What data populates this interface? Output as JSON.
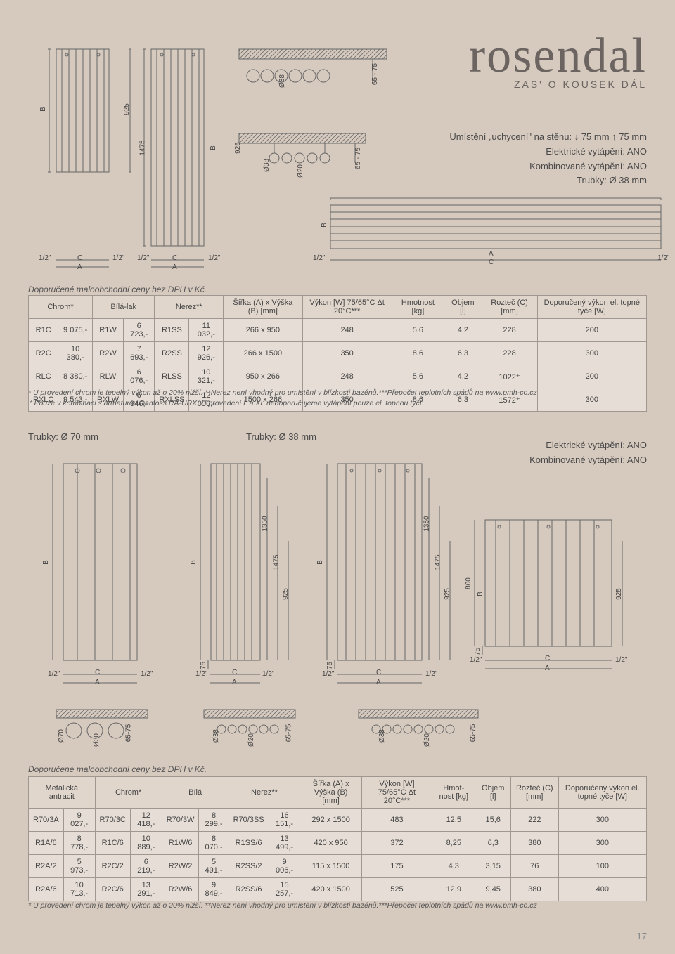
{
  "brand": "rosendal",
  "tagline": "ZAS' O KOUSEK DÁL",
  "specs": {
    "mounting": "Umístění „uchycení\" na stěnu: ↓ 75 mm ↑ 75 mm",
    "elec": "Elektrické vytápění: ANO",
    "comb": "Kombinované vytápění: ANO",
    "tubes": "Trubky: Ø 38 mm"
  },
  "dims": {
    "h_short": "925",
    "h_tall": "1475",
    "half": "1/2\"",
    "A": "A",
    "B": "B",
    "C": "C",
    "d38": "Ø38",
    "d20": "Ø20",
    "d30": "Ø30",
    "d70": "Ø70",
    "r65_75": "65 - 75",
    "r65_75b": "65-75",
    "m1350": "1350",
    "m1475": "1475",
    "m925": "925",
    "m800": "800",
    "m75": "75"
  },
  "priceNote": "Doporučené maloobchodní ceny bez DPH v Kč.",
  "table1": {
    "headers": {
      "chrom": "Chrom*",
      "bila": "Bílá-lak",
      "nerez": "Nerez**",
      "size": "Šířka (A) x Výška (B) [mm]",
      "vykon": "Výkon [W] 75/65°C Δt 20°C***",
      "hmot": "Hmotnost [kg]",
      "objem": "Objem [l]",
      "roztec": "Rozteč (C) [mm]",
      "dopor": "Doporučený výkon el. topné tyče [W]"
    },
    "rows": [
      [
        "R1C",
        "9 075,-",
        "R1W",
        "6 723,-",
        "R1SS",
        "11 032,-",
        "266 x 950",
        "248",
        "5,6",
        "4,2",
        "228",
        "200"
      ],
      [
        "R2C",
        "10 380,-",
        "R2W",
        "7 693,-",
        "R2SS",
        "12 926,-",
        "266 x 1500",
        "350",
        "8,6",
        "6,3",
        "228",
        "300"
      ],
      [
        "RLC",
        "8 380,-",
        "RLW",
        "6 076,-",
        "RLSS",
        "10 321,-",
        "950 x 266",
        "248",
        "5,6",
        "4,2",
        "1022⁺",
        "200"
      ],
      [
        "RXLC",
        "9 543,-",
        "RXLW",
        "6 946,-",
        "RXLSS",
        "12 056,-",
        "1500 x 266",
        "350",
        "8,6",
        "6,3",
        "1572⁺",
        "300"
      ]
    ]
  },
  "foot1a": "* U provedení chrom je tepelný výkon až o 20% nižší. **Nerez není vhodný pro umístění v blízkosti bazénů.***Přepočet teplotních spádů na www.pmh-co.cz",
  "foot1b": "⁺ Pouze v kombinaci s armaturou Danfoss RA-URX. U provedení L a XL nedoporučujeme vytápění pouze el. topnou tyčí.",
  "sec2": {
    "tubes70": "Trubky: Ø 70 mm",
    "tubes38": "Trubky: Ø 38 mm",
    "elec": "Elektrické vytápění: ANO",
    "comb": "Kombinované vytápění: ANO"
  },
  "table2": {
    "headers": {
      "metal": "Metalická antracit",
      "chrom": "Chrom*",
      "bila": "Bílá",
      "nerez": "Nerez**",
      "size": "Šířka (A) x Výška (B) [mm]",
      "vykon": "Výkon [W] 75/65°C Δt 20°C***",
      "hmot": "Hmot-nost [kg]",
      "objem": "Objem [l]",
      "roztec": "Rozteč (C) [mm]",
      "dopor": "Doporučený výkon el. topné tyče [W]"
    },
    "rows": [
      [
        "R70/3A",
        "9 027,-",
        "R70/3C",
        "12 418,-",
        "R70/3W",
        "8 299,-",
        "R70/3SS",
        "16 151,-",
        "292 x 1500",
        "483",
        "12,5",
        "15,6",
        "222",
        "300"
      ],
      [
        "R1A/6",
        "8 778,-",
        "R1C/6",
        "10 889,-",
        "R1W/6",
        "8 070,-",
        "R1SS/6",
        "13 499,-",
        "420 x 950",
        "372",
        "8,25",
        "6,3",
        "380",
        "300"
      ],
      [
        "R2A/2",
        "5 973,-",
        "R2C/2",
        "6 219,-",
        "R2W/2",
        "5 491,-",
        "R2SS/2",
        "9 006,-",
        "115 x 1500",
        "175",
        "4,3",
        "3,15",
        "76",
        "100"
      ],
      [
        "R2A/6",
        "10 713,-",
        "R2C/6",
        "13 291,-",
        "R2W/6",
        "9 849,-",
        "R2SS/6",
        "15 257,-",
        "420 x 1500",
        "525",
        "12,9",
        "9,45",
        "380",
        "400"
      ]
    ]
  },
  "foot2": "* U provedení chrom je tepelný výkon až o 20% nižší. **Nerez není vhodný pro umístění v blízkosti bazénů.***Přepočet teplotních spádů na www.pmh-co.cz",
  "pagenum": "17",
  "colors": {
    "bg": "#d6c9be",
    "line": "#666666",
    "text": "#4a4a4a"
  }
}
